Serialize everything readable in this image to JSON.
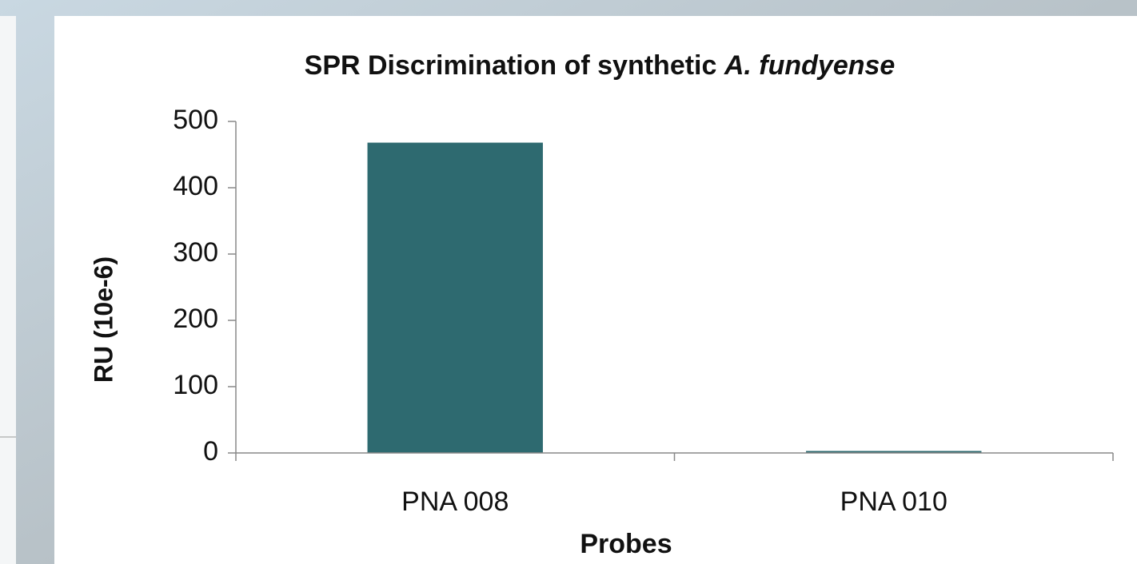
{
  "chart_data": {
    "type": "bar",
    "title": "SPR Discrimination of synthetic",
    "title_italic": "A. fundyense",
    "x_label": "Probes",
    "y_label": "RU (10e-6)",
    "categories": [
      "PNA 008",
      "PNA 010"
    ],
    "values": [
      468,
      3
    ],
    "color": "#2e6a70",
    "ylim": [
      0,
      500
    ],
    "yticks": [
      0,
      100,
      200,
      300,
      400,
      500
    ],
    "grid": false
  }
}
